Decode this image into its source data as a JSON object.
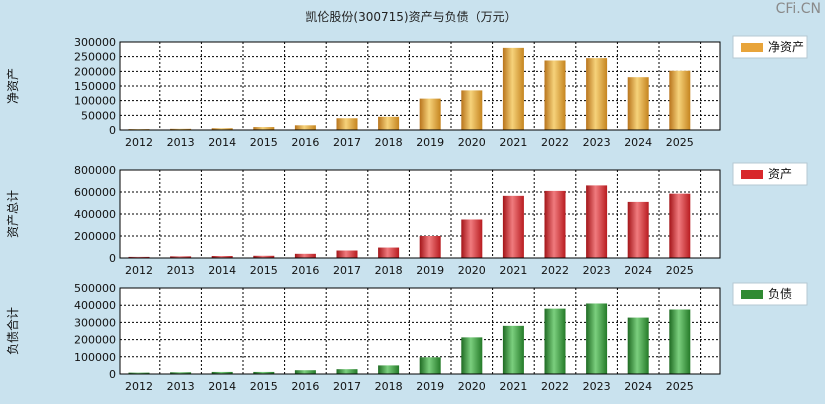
{
  "title": "凯伦股份(300715)资产与负债（万元）",
  "watermark": "CFi.CN",
  "colors": {
    "background": "#c9e2ee",
    "net_assets": "#e8a43a",
    "assets": "#d8272b",
    "liabilities": "#2f8a32"
  },
  "chart_data": [
    {
      "type": "bar",
      "ylabel": "净资产",
      "legend": "净资产",
      "legend_position": "right",
      "grid": true,
      "categories": [
        "2012",
        "2013",
        "2014",
        "2015",
        "2016",
        "2017",
        "2018",
        "2019",
        "2020",
        "2021",
        "2022",
        "2023",
        "2024",
        "2025"
      ],
      "ylim": [
        0,
        300000
      ],
      "yticks": [
        0,
        50000,
        100000,
        150000,
        200000,
        250000,
        300000
      ],
      "values": [
        3000,
        4000,
        6000,
        10000,
        16000,
        40000,
        45000,
        107000,
        135000,
        280000,
        237000,
        245000,
        180000,
        202000
      ]
    },
    {
      "type": "bar",
      "ylabel": "资产总计",
      "legend": "资产",
      "legend_position": "right",
      "grid": true,
      "categories": [
        "2012",
        "2013",
        "2014",
        "2015",
        "2016",
        "2017",
        "2018",
        "2019",
        "2020",
        "2021",
        "2022",
        "2023",
        "2024",
        "2025"
      ],
      "ylim": [
        0,
        800000
      ],
      "yticks": [
        0,
        200000,
        400000,
        600000,
        800000
      ],
      "values": [
        10000,
        15000,
        18000,
        20000,
        38000,
        68000,
        95000,
        200000,
        350000,
        565000,
        610000,
        660000,
        510000,
        585000
      ]
    },
    {
      "type": "bar",
      "ylabel": "负债合计",
      "legend": "负债",
      "legend_position": "right",
      "grid": true,
      "categories": [
        "2012",
        "2013",
        "2014",
        "2015",
        "2016",
        "2017",
        "2018",
        "2019",
        "2020",
        "2021",
        "2022",
        "2023",
        "2024",
        "2025"
      ],
      "ylim": [
        0,
        500000
      ],
      "yticks": [
        0,
        100000,
        200000,
        300000,
        400000,
        500000
      ],
      "values": [
        8000,
        10000,
        12000,
        12000,
        22000,
        28000,
        50000,
        97000,
        213000,
        280000,
        380000,
        410000,
        328000,
        375000
      ]
    }
  ]
}
